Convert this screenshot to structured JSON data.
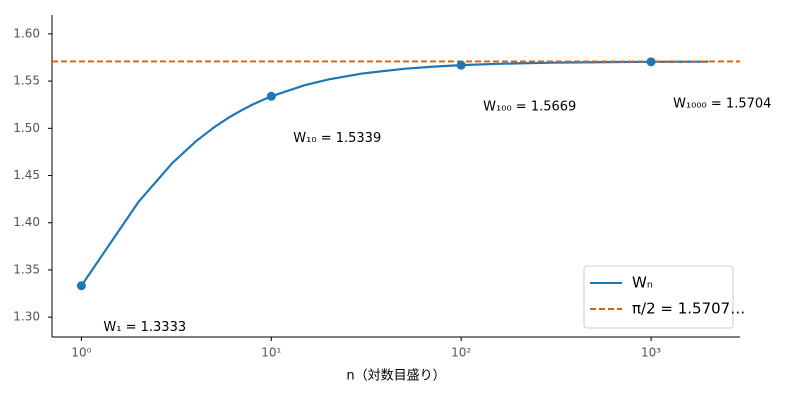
{
  "chart_data": {
    "type": "line",
    "x_label": "n（対数目盛り）",
    "xscale": "log",
    "xlim": [
      0.7,
      2940
    ],
    "xticks": [
      {
        "value": 1,
        "label": "10⁰"
      },
      {
        "value": 10,
        "label": "10¹"
      },
      {
        "value": 100,
        "label": "10²"
      },
      {
        "value": 1000,
        "label": "10³"
      }
    ],
    "ylim": [
      1.279,
      1.62
    ],
    "yticks": [
      {
        "value": 1.3,
        "label": "1.30"
      },
      1.35,
      {
        "value": 1.4,
        "label": "1.40"
      },
      1.45,
      {
        "value": 1.5,
        "label": "1.50"
      },
      1.55,
      {
        "value": 1.6,
        "label": "1.60"
      }
    ],
    "legend": "lower right",
    "series": [
      {
        "name": "Wₙ",
        "color": "#1f77b4",
        "x": [
          1,
          2,
          3,
          4,
          5,
          6,
          7,
          8,
          9,
          10,
          15,
          20,
          30,
          50,
          70,
          100,
          150,
          200,
          300,
          500,
          700,
          1000,
          1500,
          2000
        ],
        "values": [
          1.3333,
          1.4222,
          1.4629,
          1.4861,
          1.5011,
          1.5116,
          1.5193,
          1.5253,
          1.53,
          1.5339,
          1.5457,
          1.5518,
          1.558,
          1.563,
          1.5652,
          1.5669,
          1.5682,
          1.5688,
          1.5695,
          1.57,
          1.5702,
          1.5704,
          1.5705,
          1.5706
        ]
      },
      {
        "name": "π/2 = 1.5707…",
        "color": "#d9600e",
        "dashed": true,
        "hline": 1.5708
      }
    ],
    "markers": {
      "color": "#1f77b4",
      "x": [
        1,
        10,
        100,
        1000
      ],
      "values": [
        1.3333,
        1.5339,
        1.5669,
        1.5704
      ],
      "labels": [
        "W₁ = 1.3333",
        "W₁₀ = 1.5339",
        "W₁₀₀ = 1.5669",
        "W₁₀₀₀ = 1.5704"
      ]
    }
  }
}
